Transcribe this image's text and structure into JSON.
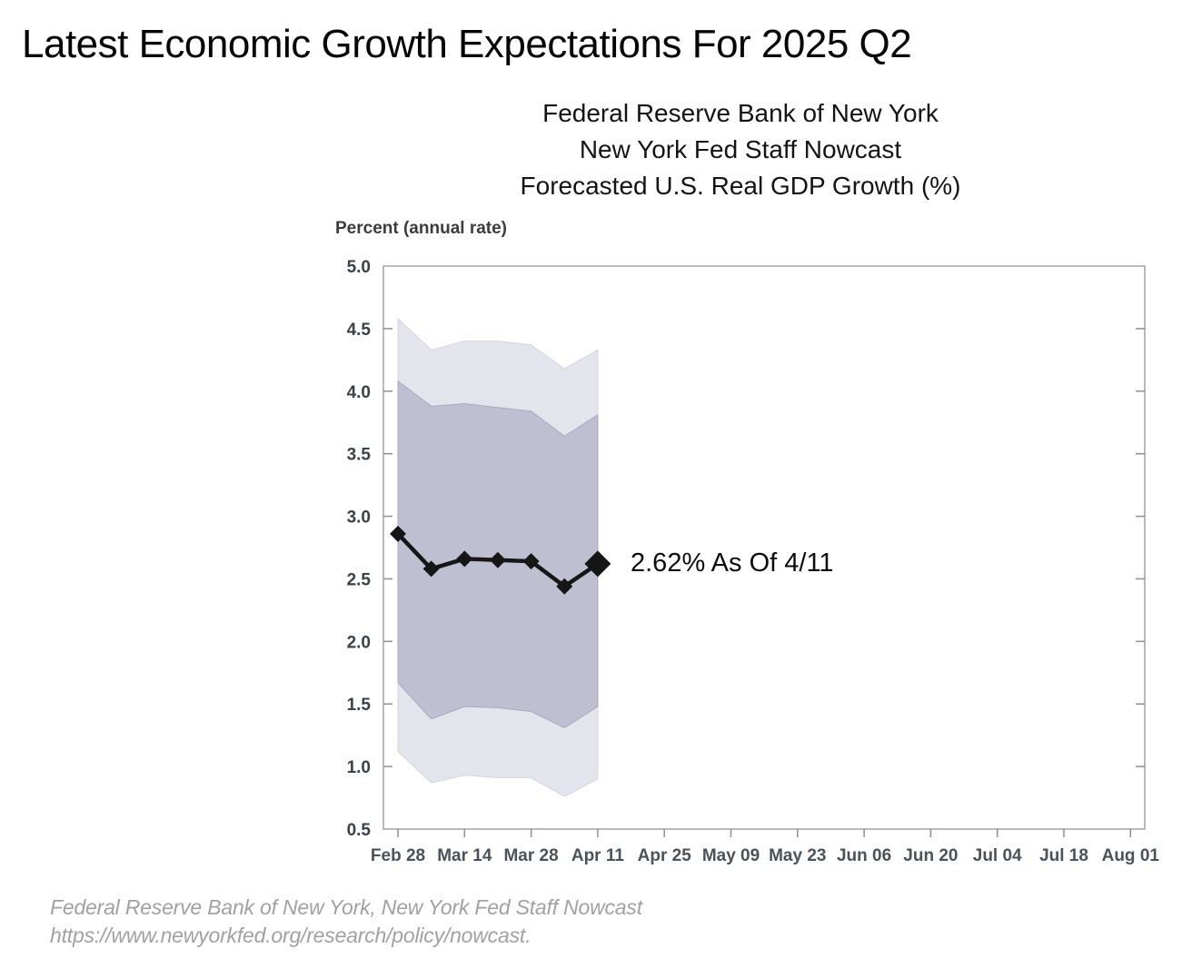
{
  "page": {
    "title": "Latest Economic Growth Expectations For 2025 Q2",
    "subtitle_lines": [
      "Federal Reserve Bank of New York",
      "New York Fed Staff Nowcast",
      "Forecasted U.S. Real GDP Growth (%)"
    ],
    "footer_lines": [
      "Federal Reserve Bank of New York, New York Fed Staff Nowcast",
      "https://www.newyorkfed.org/research/policy/nowcast."
    ]
  },
  "chart_data": {
    "type": "line",
    "title": "New York Fed Staff Nowcast — Forecasted U.S. Real GDP Growth (%)",
    "xlabel": "",
    "ylabel": "Percent (annual rate)",
    "ylim": [
      0.5,
      5.0
    ],
    "grid": false,
    "legend_position": "none",
    "y_tick_labels": [
      "5.0",
      "4.5",
      "4.0",
      "3.5",
      "3.0",
      "2.5",
      "2.0",
      "1.5",
      "1.0",
      "0.5"
    ],
    "x_tick_labels": [
      "Feb 28",
      "Mar 14",
      "Mar 28",
      "Apr 11",
      "Apr 25",
      "May 09",
      "May 23",
      "Jun 06",
      "Jun 20",
      "Jul 04",
      "Jul 18",
      "Aug 01"
    ],
    "x": [
      "Feb 28",
      "Mar 07",
      "Mar 14",
      "Mar 21",
      "Mar 28",
      "Apr 04",
      "Apr 11"
    ],
    "series": [
      {
        "name": "Nowcast point estimate",
        "values": [
          2.86,
          2.58,
          2.66,
          2.65,
          2.64,
          2.44,
          2.62
        ]
      },
      {
        "name": "Outer band top",
        "values": [
          4.58,
          4.33,
          4.4,
          4.4,
          4.37,
          4.18,
          4.33
        ]
      },
      {
        "name": "Inner band top",
        "values": [
          4.08,
          3.88,
          3.9,
          3.87,
          3.84,
          3.64,
          3.81
        ]
      },
      {
        "name": "Inner band bottom",
        "values": [
          1.67,
          1.38,
          1.48,
          1.47,
          1.44,
          1.31,
          1.48
        ]
      },
      {
        "name": "Outer band bottom",
        "values": [
          1.12,
          0.87,
          0.93,
          0.91,
          0.91,
          0.76,
          0.9
        ]
      }
    ],
    "annotation": {
      "text": "2.62% As Of 4/11",
      "x": "Apr 11",
      "y": 2.62
    },
    "colors": {
      "line": "#161616",
      "marker": "#161616",
      "inner_band_fill": "#bfbfd2",
      "inner_band_edge": "#a8a8c2",
      "outer_band_fill": "#e4e4ed",
      "outer_band_edge": "#d6d6e3",
      "frame": "#a3a3a3",
      "tick": "#8f8f8f",
      "y_tick_label": "#39424a",
      "x_tick_label": "#4a525a"
    }
  }
}
